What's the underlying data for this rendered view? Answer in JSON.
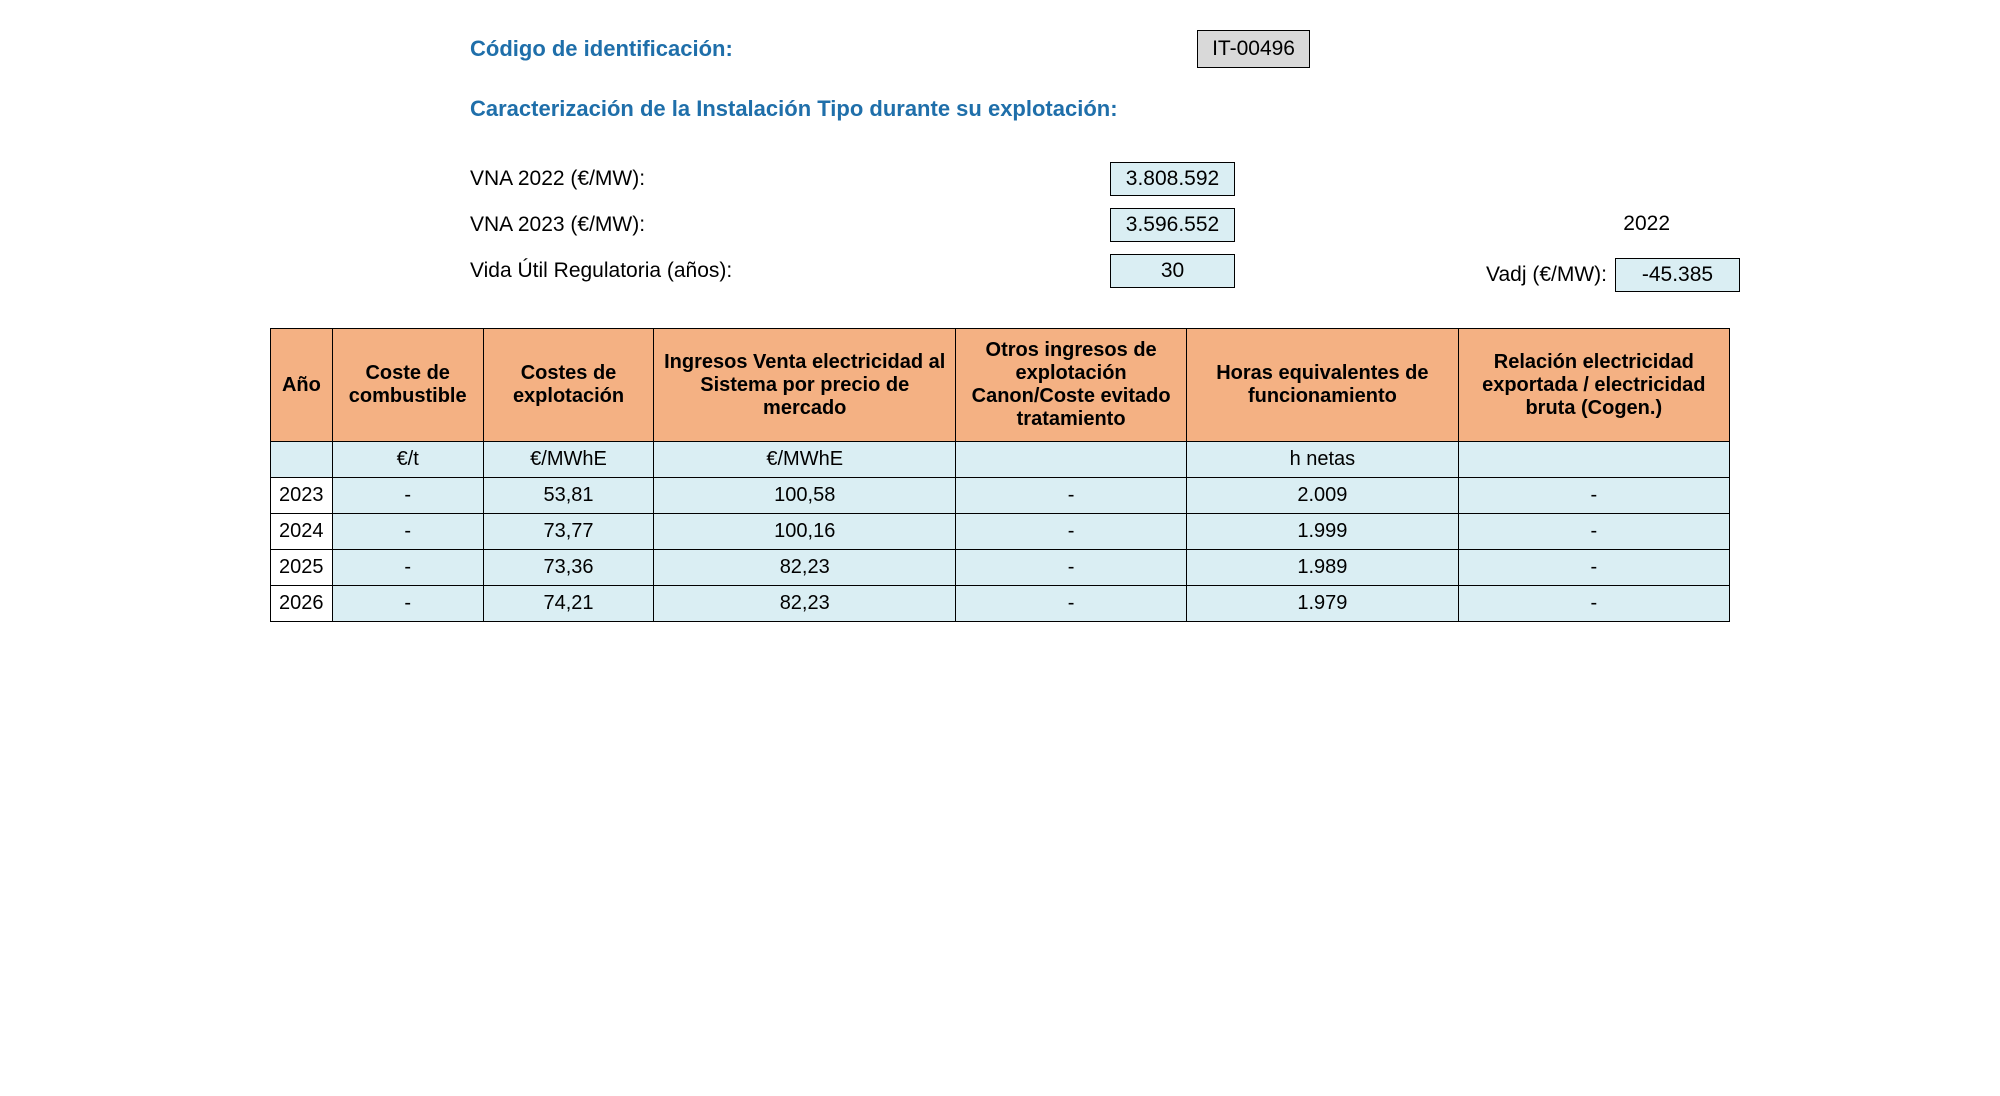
{
  "header": {
    "codigo_label": "Código de identificación:",
    "codigo_value": "IT-00496",
    "subtitle": "Caracterización de la Instalación Tipo durante su explotación:"
  },
  "params": {
    "vna2022_label": "VNA 2022 (€/MW):",
    "vna2022_value": "3.808.592",
    "vna2023_label": "VNA 2023 (€/MW):",
    "vna2023_value": "3.596.552",
    "vida_label": "Vida Útil Regulatoria (años):",
    "vida_value": "30",
    "year_ref": "2022",
    "vadj_label": "Vadj (€/MW):",
    "vadj_value": "-45.385"
  },
  "table": {
    "headers": {
      "ano": "Año",
      "coste_combustible": "Coste de combustible",
      "costes_explotacion": "Costes de explotación",
      "ingresos_venta": "Ingresos Venta electricidad al Sistema por precio de mercado",
      "otros_ingresos": "Otros ingresos de explotación Canon/Coste evitado tratamiento",
      "horas": "Horas equivalentes de funcionamiento",
      "relacion": "Relación electricidad exportada / electricidad bruta (Cogen.)"
    },
    "units": {
      "ano": "",
      "coste_combustible": "€/t",
      "costes_explotacion": "€/MWhE",
      "ingresos_venta": "€/MWhE",
      "otros_ingresos": "",
      "horas": "h netas",
      "relacion": ""
    },
    "rows": [
      {
        "ano": "2023",
        "coste_combustible": "-",
        "costes_explotacion": "53,81",
        "ingresos_venta": "100,58",
        "otros_ingresos": "-",
        "horas": "2.009",
        "relacion": "-"
      },
      {
        "ano": "2024",
        "coste_combustible": "-",
        "costes_explotacion": "73,77",
        "ingresos_venta": "100,16",
        "otros_ingresos": "-",
        "horas": "1.999",
        "relacion": "-"
      },
      {
        "ano": "2025",
        "coste_combustible": "-",
        "costes_explotacion": "73,36",
        "ingresos_venta": "82,23",
        "otros_ingresos": "-",
        "horas": "1.989",
        "relacion": "-"
      },
      {
        "ano": "2026",
        "coste_combustible": "-",
        "costes_explotacion": "74,21",
        "ingresos_venta": "82,23",
        "otros_ingresos": "-",
        "horas": "1.979",
        "relacion": "-"
      }
    ]
  },
  "colors": {
    "title_blue": "#1f6faa",
    "header_bg": "#f4b183",
    "cell_bg": "#daeef3",
    "code_bg": "#d9d9d9",
    "border": "#000000"
  }
}
